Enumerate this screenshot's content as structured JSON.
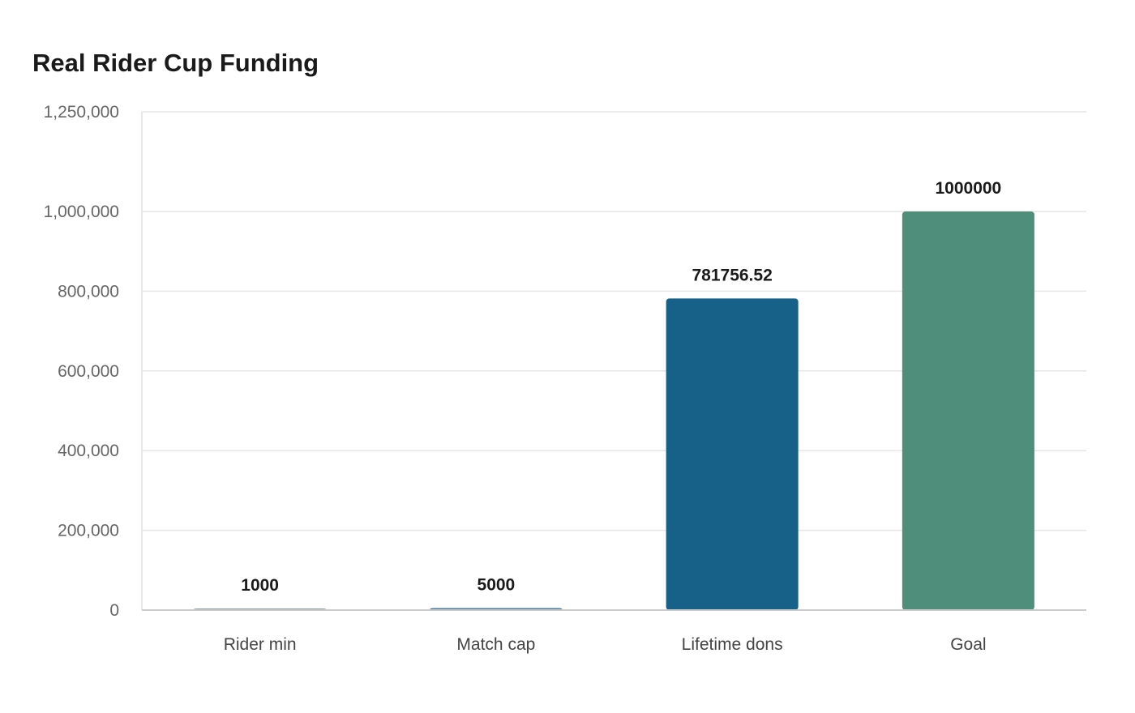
{
  "chart_data": {
    "type": "bar",
    "title": "Real Rider Cup Funding",
    "xlabel": "",
    "ylabel": "",
    "categories": [
      "Rider min",
      "Match cap",
      "Lifetime dons",
      "Goal"
    ],
    "values": [
      1000,
      5000,
      781756.52,
      1000000
    ],
    "data_labels": [
      "1000",
      "5000",
      "781756.52",
      "1000000"
    ],
    "ylim": [
      0,
      1250000
    ],
    "y_ticks": [
      0,
      200000,
      400000,
      600000,
      800000,
      1000000,
      1250000
    ],
    "y_tick_labels": [
      "0",
      "200,000",
      "400,000",
      "600,000",
      "800,000",
      "1,000,000",
      "1,250,000"
    ],
    "grid": true,
    "colors": [
      "#8a9ba8",
      "#4a7a94",
      "#176088",
      "#4e8e7b"
    ]
  }
}
